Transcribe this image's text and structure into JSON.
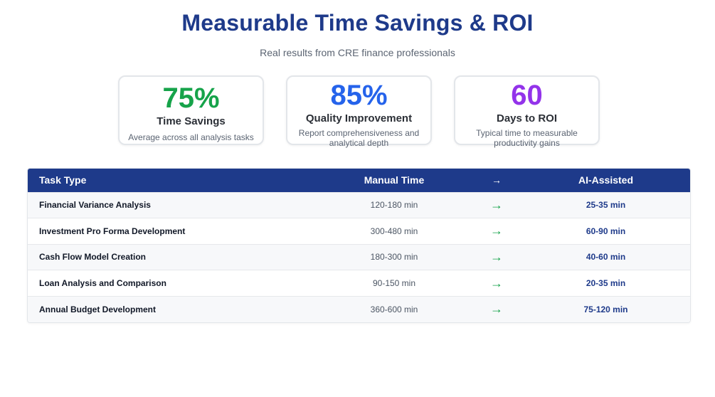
{
  "header": {
    "title": "Measurable Time Savings & ROI",
    "subtitle": "Real results from CRE finance professionals"
  },
  "metrics": [
    {
      "value": "75%",
      "label": "Time Savings",
      "description": "Average across all analysis tasks",
      "color": "#16a34a"
    },
    {
      "value": "85%",
      "label": "Quality Improvement",
      "description": "Report comprehensiveness and analytical depth",
      "color": "#2563eb"
    },
    {
      "value": "60",
      "label": "Days to ROI",
      "description": "Typical time to measurable productivity gains",
      "color": "#9333ea"
    }
  ],
  "table": {
    "headers": {
      "task": "Task Type",
      "manual": "Manual Time",
      "arrow": "→",
      "ai": "AI-Assisted"
    },
    "rows": [
      {
        "task": "Financial Variance Analysis",
        "manual": "120-180 min",
        "arrow": "→",
        "ai": "25-35 min"
      },
      {
        "task": "Investment Pro Forma Development",
        "manual": "300-480 min",
        "arrow": "→",
        "ai": "60-90 min"
      },
      {
        "task": "Cash Flow Model Creation",
        "manual": "180-300 min",
        "arrow": "→",
        "ai": "40-60 min"
      },
      {
        "task": "Loan Analysis and Comparison",
        "manual": "90-150 min",
        "arrow": "→",
        "ai": "20-35 min"
      },
      {
        "task": "Annual Budget Development",
        "manual": "360-600 min",
        "arrow": "→",
        "ai": "75-120 min"
      }
    ]
  },
  "colors": {
    "brand": "#1e3a8a",
    "arrow": "#16a34a"
  }
}
